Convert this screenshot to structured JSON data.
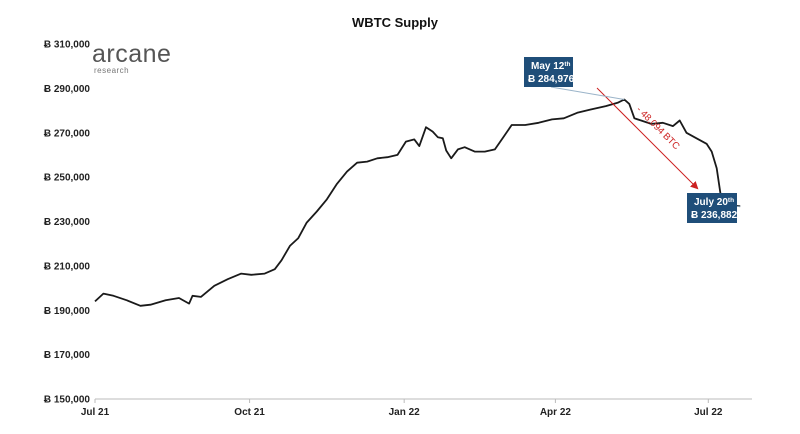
{
  "chart_data": {
    "type": "line",
    "title": "WBTC Supply",
    "xlabel": "",
    "ylabel": "",
    "currency_symbol": "Ƀ",
    "ylim": [
      150000,
      310000
    ],
    "yticks": [
      310000,
      290000,
      270000,
      250000,
      230000,
      210000,
      190000,
      170000,
      150000
    ],
    "ytick_labels": [
      "Ƀ 310,000",
      "Ƀ 290,000",
      "Ƀ 270,000",
      "Ƀ 250,000",
      "Ƀ 230,000",
      "Ƀ 210,000",
      "Ƀ 190,000",
      "Ƀ 170,000",
      "Ƀ 150,000"
    ],
    "xlim": [
      "2021-07-01",
      "2022-07-27"
    ],
    "xticks": [
      "2021-07-01",
      "2021-10-01",
      "2022-01-01",
      "2022-04-01",
      "2022-07-01"
    ],
    "xtick_labels": [
      "Jul 21",
      "Oct 21",
      "Jan 22",
      "Apr 22",
      "Jul 22"
    ],
    "grid": false,
    "series": [
      {
        "color": "#1a1a1a",
        "x": [
          "2021-07-01",
          "2021-07-06",
          "2021-07-12",
          "2021-07-20",
          "2021-07-28",
          "2021-08-03",
          "2021-08-12",
          "2021-08-20",
          "2021-08-26",
          "2021-08-28",
          "2021-09-02",
          "2021-09-10",
          "2021-09-18",
          "2021-09-26",
          "2021-10-02",
          "2021-10-10",
          "2021-10-16",
          "2021-10-20",
          "2021-10-25",
          "2021-10-30",
          "2021-11-04",
          "2021-11-10",
          "2021-11-16",
          "2021-11-22",
          "2021-11-28",
          "2021-12-04",
          "2021-12-10",
          "2021-12-16",
          "2021-12-22",
          "2021-12-28",
          "2022-01-02",
          "2022-01-07",
          "2022-01-10",
          "2022-01-14",
          "2022-01-18",
          "2022-01-21",
          "2022-01-24",
          "2022-01-26",
          "2022-01-29",
          "2022-02-02",
          "2022-02-06",
          "2022-02-12",
          "2022-02-18",
          "2022-02-24",
          "2022-03-01",
          "2022-03-06",
          "2022-03-14",
          "2022-03-22",
          "2022-03-30",
          "2022-04-06",
          "2022-04-14",
          "2022-04-22",
          "2022-05-01",
          "2022-05-08",
          "2022-05-12",
          "2022-05-15",
          "2022-05-18",
          "2022-05-22",
          "2022-05-28",
          "2022-06-04",
          "2022-06-10",
          "2022-06-14",
          "2022-06-18",
          "2022-06-24",
          "2022-06-30",
          "2022-07-03",
          "2022-07-06",
          "2022-07-09",
          "2022-07-12",
          "2022-07-15",
          "2022-07-20"
        ],
        "y": [
          194000,
          197500,
          196500,
          194500,
          192000,
          192500,
          194500,
          195500,
          193000,
          196500,
          196000,
          201000,
          204000,
          206500,
          206000,
          206500,
          208500,
          212500,
          219000,
          222500,
          229500,
          234500,
          240000,
          247000,
          252500,
          256500,
          257000,
          258500,
          259000,
          260000,
          266000,
          267000,
          264000,
          272500,
          270500,
          268000,
          267500,
          262000,
          258500,
          262500,
          263500,
          261500,
          261500,
          262500,
          268000,
          273500,
          273500,
          274500,
          276000,
          276500,
          279000,
          280500,
          282000,
          283500,
          284976,
          283000,
          276500,
          275500,
          274000,
          274500,
          273000,
          275500,
          270000,
          267500,
          265000,
          261500,
          254000,
          238500,
          237500,
          237200,
          236882
        ]
      }
    ],
    "annotations": [
      {
        "label": "May 12",
        "superscript": "th",
        "value_label": "Ƀ 284,976",
        "x": "2022-05-12",
        "y": 284976
      },
      {
        "label": "July 20",
        "superscript": "th",
        "value_label": "Ƀ 236,882",
        "x": "2022-07-20",
        "y": 236882
      }
    ],
    "change_label": "- 48,094 BTC",
    "colors": {
      "line": "#1a1a1a",
      "callout_bg": "#1f4e79",
      "arrow": "#cc2020"
    }
  },
  "logo": {
    "name": "arcane",
    "sub": "research"
  }
}
